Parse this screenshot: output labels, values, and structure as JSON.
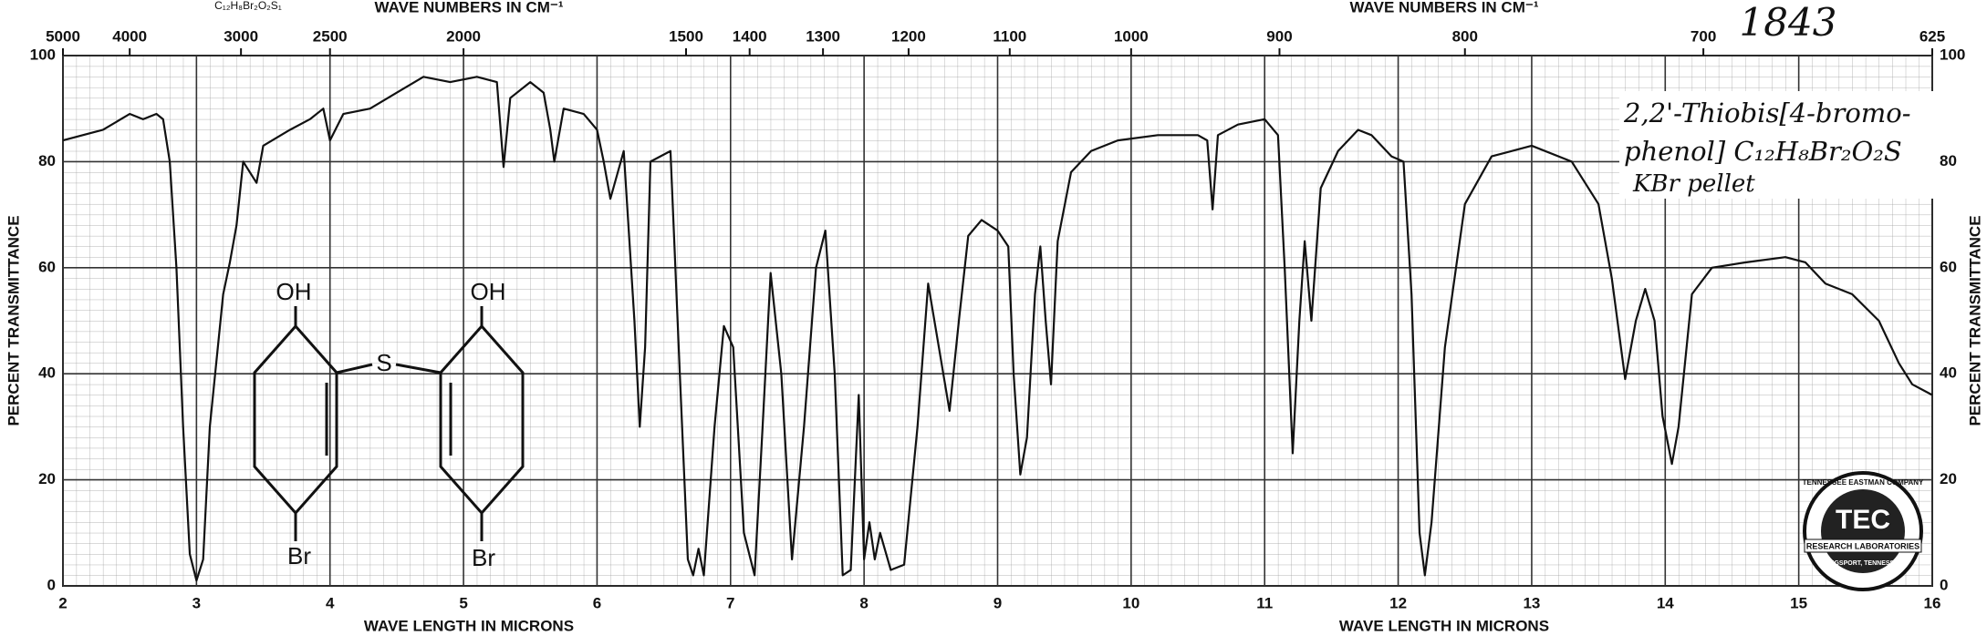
{
  "chart_data": {
    "type": "line",
    "x_label": "WAVE LENGTH IN MICRONS",
    "y_label": "PERCENT TRANSMITTANCE",
    "x2_label": "WAVE NUMBERS IN CM⁻¹",
    "annotations": [
      "C₁₂H₈Br₂O₂S₁",
      "1843",
      "2,2'-Thiobis[4-bromo-",
      "phenol] C₁₂H₈Br₂O₂S",
      "KBr pellet",
      "OH",
      "S",
      "OH",
      "Br",
      "Br",
      "TENNESSEE EASTMAN COMPANY",
      "TEC",
      "RESEARCH LABORATORIES",
      "KINGSPORT, TENNESSEE"
    ],
    "x": [
      2.0,
      2.3,
      2.5,
      2.6,
      2.7,
      2.75,
      2.8,
      2.85,
      2.9,
      2.95,
      3.0,
      3.05,
      3.1,
      3.2,
      3.25,
      3.3,
      3.35,
      3.4,
      3.45,
      3.5,
      3.7,
      3.85,
      3.95,
      4.0,
      4.1,
      4.3,
      4.5,
      4.7,
      4.9,
      5.1,
      5.25,
      5.3,
      5.35,
      5.5,
      5.6,
      5.65,
      5.68,
      5.75,
      5.9,
      6.0,
      6.05,
      6.1,
      6.2,
      6.28,
      6.32,
      6.36,
      6.4,
      6.55,
      6.62,
      6.68,
      6.72,
      6.76,
      6.8,
      6.88,
      6.95,
      7.02,
      7.1,
      7.18,
      7.24,
      7.3,
      7.38,
      7.46,
      7.55,
      7.64,
      7.71,
      7.78,
      7.84,
      7.9,
      7.96,
      8.0,
      8.04,
      8.08,
      8.12,
      8.2,
      8.3,
      8.4,
      8.48,
      8.56,
      8.64,
      8.71,
      8.78,
      8.88,
      9.0,
      9.08,
      9.12,
      9.17,
      9.22,
      9.28,
      9.32,
      9.36,
      9.4,
      9.45,
      9.55,
      9.7,
      9.9,
      10.2,
      10.5,
      10.57,
      10.61,
      10.65,
      10.8,
      11.0,
      11.1,
      11.15,
      11.21,
      11.26,
      11.3,
      11.35,
      11.42,
      11.55,
      11.7,
      11.8,
      11.95,
      12.04,
      12.1,
      12.16,
      12.2,
      12.25,
      12.35,
      12.5,
      12.7,
      13.0,
      13.3,
      13.5,
      13.6,
      13.7,
      13.78,
      13.85,
      13.92,
      13.98,
      14.05,
      14.1,
      14.2,
      14.35,
      14.6,
      14.9,
      15.05,
      15.2,
      15.4,
      15.6,
      15.75,
      15.85,
      16.0
    ],
    "values": [
      84,
      86,
      89,
      88,
      89,
      88,
      80,
      60,
      30,
      6,
      1,
      5,
      30,
      55,
      61,
      68,
      80,
      78,
      76,
      83,
      86,
      88,
      90,
      84,
      89,
      90,
      93,
      96,
      95,
      96,
      95,
      79,
      92,
      95,
      93,
      86,
      80,
      90,
      89,
      86,
      80,
      73,
      82,
      50,
      30,
      45,
      80,
      82,
      40,
      5,
      2,
      7,
      2,
      30,
      49,
      45,
      10,
      2,
      30,
      59,
      40,
      5,
      30,
      60,
      67,
      40,
      2,
      3,
      36,
      5,
      12,
      5,
      10,
      3,
      4,
      30,
      57,
      45,
      33,
      50,
      66,
      69,
      67,
      64,
      40,
      21,
      28,
      55,
      64,
      50,
      38,
      65,
      78,
      82,
      84,
      85,
      85,
      84,
      71,
      85,
      87,
      88,
      85,
      60,
      25,
      50,
      65,
      50,
      75,
      82,
      86,
      85,
      81,
      80,
      55,
      10,
      2,
      12,
      45,
      72,
      81,
      83,
      80,
      72,
      58,
      39,
      50,
      56,
      50,
      32,
      23,
      30,
      55,
      60,
      61,
      62,
      61,
      57,
      55,
      50,
      42,
      38,
      36
    ],
    "color": "#111111",
    "xlim": [
      2,
      16
    ],
    "ylim": [
      0,
      100
    ],
    "xticks": [
      2,
      3,
      4,
      5,
      6,
      7,
      8,
      9,
      10,
      11,
      12,
      13,
      14,
      15,
      16
    ],
    "yticks": [
      0,
      20,
      40,
      60,
      80,
      100
    ],
    "x2ticks": [
      5000,
      4000,
      3000,
      2500,
      2000,
      1500,
      1400,
      1300,
      1200,
      1100,
      1000,
      900,
      800,
      700,
      625
    ],
    "grid": true
  }
}
